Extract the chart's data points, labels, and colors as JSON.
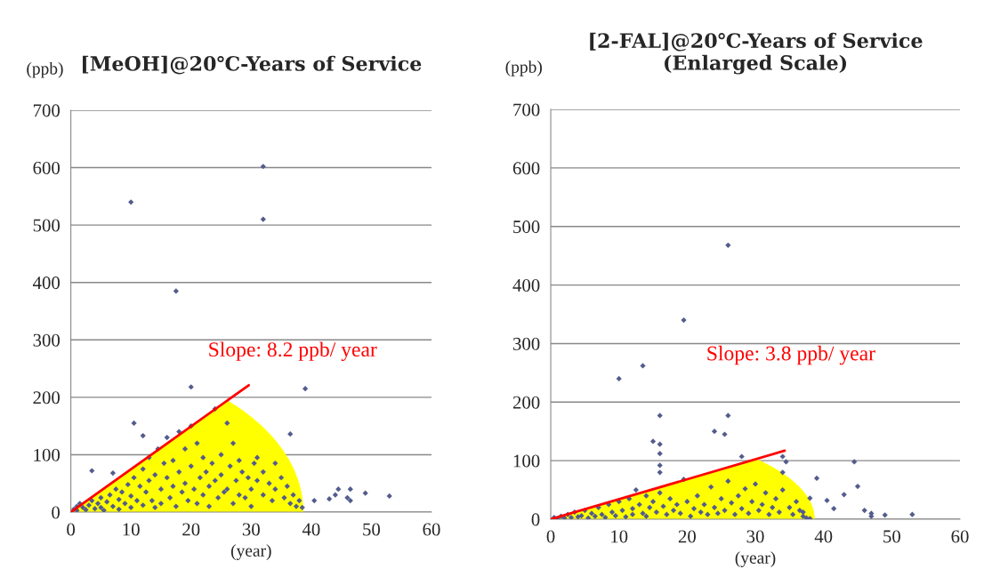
{
  "chart_data": [
    {
      "type": "scatter",
      "title": "[MeOH]@20℃-Years of Service",
      "xlabel": "(year)",
      "ylabel": "(ppb)",
      "xlim": [
        0,
        60
      ],
      "xticks": [
        0,
        10,
        20,
        30,
        40,
        50,
        60
      ],
      "ylim": [
        0,
        700
      ],
      "yticks": [
        0,
        100,
        200,
        300,
        400,
        500,
        600,
        700
      ],
      "grid": "y",
      "annotations": [
        "Slope: 8.2 ppb/ year"
      ],
      "series": [
        {
          "marker": "diamond",
          "color": "#535c8c",
          "x": [
            0.5,
            1,
            1,
            1.5,
            2,
            2.5,
            3,
            3.5,
            4,
            4.5,
            5,
            5,
            5.5,
            6,
            6.5,
            7,
            7.5,
            8,
            8,
            8.5,
            9,
            9.5,
            10,
            10,
            10.5,
            11,
            11.5,
            12,
            12,
            12.5,
            13,
            13,
            13.5,
            14,
            14,
            14.5,
            15,
            15,
            15.5,
            16,
            16,
            16.5,
            17,
            17,
            17.5,
            18,
            18,
            18.5,
            19,
            19,
            19.5,
            20,
            20,
            20.5,
            21,
            21,
            21.5,
            22,
            22,
            22.5,
            23,
            23,
            23.5,
            24,
            24,
            24.5,
            25,
            25,
            25.5,
            26,
            26,
            26.5,
            27,
            27,
            27.5,
            28,
            28,
            28.5,
            29,
            29.5,
            30,
            30,
            30.5,
            31,
            31,
            32,
            32,
            33,
            33.5,
            34,
            34,
            35,
            35.5,
            36,
            36.5,
            37,
            37.5,
            38,
            38.5,
            10,
            32,
            32,
            17.5,
            20,
            39,
            36.5,
            10.5,
            12,
            3.5,
            7,
            40.5,
            43,
            44,
            44.5,
            46,
            46.5,
            49,
            53,
            46.5
          ],
          "values": [
            5,
            10,
            3,
            15,
            8,
            4,
            12,
            20,
            6,
            15,
            25,
            8,
            3,
            18,
            30,
            10,
            40,
            22,
            5,
            35,
            15,
            48,
            28,
            8,
            60,
            20,
            45,
            75,
            12,
            35,
            95,
            55,
            20,
            65,
            8,
            110,
            40,
            15,
            85,
            130,
            60,
            25,
            90,
            45,
            10,
            140,
            70,
            35,
            110,
            50,
            20,
            150,
            80,
            40,
            120,
            15,
            60,
            95,
            30,
            70,
            45,
            10,
            85,
            180,
            55,
            25,
            100,
            65,
            35,
            155,
            40,
            80,
            15,
            120,
            55,
            90,
            30,
            70,
            25,
            60,
            40,
            10,
            85,
            55,
            95,
            30,
            70,
            50,
            20,
            85,
            40,
            60,
            25,
            45,
            15,
            30,
            10,
            20,
            8,
            540,
            602,
            510,
            385,
            218,
            215,
            136,
            155,
            133,
            72,
            68,
            20,
            23,
            30,
            40,
            25,
            40,
            33,
            28,
            20
          ]
        },
        {
          "type": "line",
          "color": "#ff0000",
          "x": [
            0,
            29.6
          ],
          "values": [
            0,
            221
          ]
        }
      ]
    },
    {
      "type": "scatter",
      "title": "[2-FAL]@20℃-Years of Service\n(Enlarged Scale)",
      "xlabel": "(year)",
      "ylabel": "(ppb)",
      "xlim": [
        0,
        60
      ],
      "xticks": [
        0,
        10,
        20,
        30,
        40,
        50,
        60
      ],
      "ylim": [
        0,
        700
      ],
      "yticks": [
        0,
        100,
        200,
        300,
        400,
        500,
        600,
        700
      ],
      "grid": "y",
      "annotations": [
        "Slope: 3.8 ppb/ year"
      ],
      "series": [
        {
          "marker": "diamond",
          "color": "#535c8c",
          "x": [
            0.5,
            1,
            1.5,
            2,
            2.5,
            3,
            3.5,
            4,
            4.5,
            5,
            5.5,
            6,
            6.5,
            7,
            7.5,
            8,
            8.5,
            9,
            9.5,
            10,
            10.5,
            11,
            11.5,
            12,
            12,
            12.5,
            13,
            13.5,
            14,
            14,
            14.5,
            15,
            15.5,
            16,
            16.5,
            17,
            17.5,
            18,
            18.5,
            19,
            19.5,
            20,
            20.5,
            21,
            21.5,
            22,
            22.5,
            23,
            23.5,
            24,
            24.5,
            25,
            25.5,
            26,
            26.5,
            27,
            27.5,
            28,
            28.5,
            29,
            29.5,
            30,
            30.5,
            31,
            31.5,
            32,
            32.5,
            33,
            33.5,
            34,
            35,
            35.5,
            36,
            36.5,
            37,
            37.5,
            38,
            26,
            19.5,
            13.5,
            10,
            16,
            26,
            24,
            25.5,
            15,
            16,
            16,
            16,
            16,
            28,
            34,
            34.5,
            34,
            44.5,
            45,
            39,
            43,
            40.5,
            41.5,
            38,
            37,
            46,
            47,
            47,
            53,
            49
          ],
          "values": [
            3,
            1,
            5,
            2,
            8,
            3,
            12,
            4,
            6,
            15,
            2,
            10,
            5,
            20,
            8,
            3,
            25,
            12,
            6,
            30,
            15,
            4,
            35,
            18,
            8,
            50,
            25,
            10,
            40,
            5,
            20,
            30,
            12,
            45,
            22,
            8,
            35,
            15,
            25,
            10,
            68,
            30,
            5,
            18,
            40,
            12,
            25,
            8,
            55,
            20,
            10,
            35,
            15,
            65,
            28,
            8,
            40,
            18,
            52,
            10,
            30,
            60,
            15,
            25,
            45,
            8,
            20,
            35,
            12,
            50,
            20,
            8,
            30,
            15,
            5,
            2,
            1,
            468,
            340,
            262,
            240,
            177,
            177,
            150,
            145,
            133,
            128,
            112,
            92,
            80,
            107,
            107,
            98,
            80,
            98,
            56,
            70,
            42,
            32,
            18,
            36,
            12,
            15,
            10,
            5,
            8,
            7
          ]
        },
        {
          "type": "line",
          "color": "#ff0000",
          "x": [
            0,
            34.3
          ],
          "values": [
            0,
            117
          ]
        }
      ]
    }
  ]
}
